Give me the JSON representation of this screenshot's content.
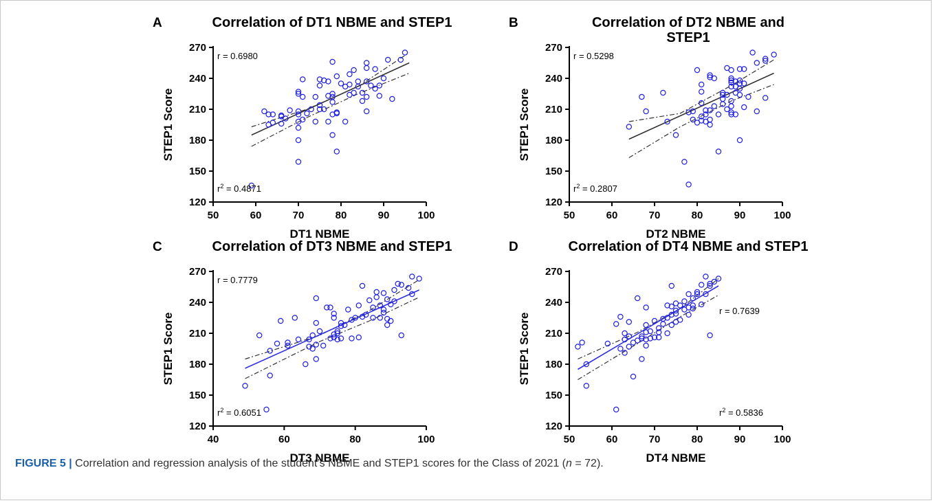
{
  "caption": {
    "lead": "FIGURE 5 |",
    "text_before_n": " Correlation and regression analysis of the student’s NBME and STEP1 scores for the Class of 2021 (",
    "n_symbol": "n",
    "text_after_n": " = 72)."
  },
  "colors": {
    "points": "#2020e0",
    "fit_black": "#333333",
    "fit_blue": "#3030e0",
    "axis": "#000000"
  },
  "chart_data": [
    {
      "panel": "A",
      "type": "scatter",
      "title": [
        "Correlation of DT1 NBME and STEP1"
      ],
      "xlabel": "DT1 NBME",
      "ylabel": "STEP1 Score",
      "xlim": [
        50,
        100
      ],
      "ylim": [
        120,
        270
      ],
      "xticks": [
        50,
        60,
        70,
        80,
        90,
        100
      ],
      "yticks": [
        120,
        150,
        180,
        210,
        240,
        270
      ],
      "r_text": "r = 0.6980",
      "r2_prefix": "r",
      "r2_value": " = 0.4871",
      "r_position": "top-left",
      "r2_position": "bottom-left",
      "fit_color": "black",
      "fit": {
        "x0": 59,
        "y0": 185,
        "x1": 96,
        "y1": 255
      },
      "band_upper": [
        [
          59,
          193
        ],
        [
          72,
          210
        ],
        [
          84,
          232
        ],
        [
          96,
          265
        ]
      ],
      "band_lower": [
        [
          59,
          174
        ],
        [
          72,
          202
        ],
        [
          84,
          225
        ],
        [
          96,
          245
        ]
      ],
      "points": [
        [
          59,
          136
        ],
        [
          62,
          208
        ],
        [
          63,
          195
        ],
        [
          63,
          205
        ],
        [
          64,
          197
        ],
        [
          64,
          205
        ],
        [
          66,
          196
        ],
        [
          66,
          203
        ],
        [
          66,
          204
        ],
        [
          67,
          201
        ],
        [
          68,
          209
        ],
        [
          70,
          159
        ],
        [
          70,
          180
        ],
        [
          70,
          192
        ],
        [
          70,
          198
        ],
        [
          70,
          205
        ],
        [
          70,
          208
        ],
        [
          70,
          225
        ],
        [
          70,
          227
        ],
        [
          71,
          200
        ],
        [
          71,
          222
        ],
        [
          71,
          239
        ],
        [
          72,
          206
        ],
        [
          73,
          210
        ],
        [
          74,
          198
        ],
        [
          74,
          222
        ],
        [
          75,
          210
        ],
        [
          75,
          214
        ],
        [
          75,
          233
        ],
        [
          75,
          239
        ],
        [
          76,
          210
        ],
        [
          76,
          238
        ],
        [
          77,
          198
        ],
        [
          77,
          223
        ],
        [
          77,
          237
        ],
        [
          78,
          185
        ],
        [
          78,
          205
        ],
        [
          78,
          217
        ],
        [
          78,
          222
        ],
        [
          78,
          225
        ],
        [
          78,
          256
        ],
        [
          79,
          169
        ],
        [
          79,
          206
        ],
        [
          79,
          207
        ],
        [
          79,
          242
        ],
        [
          80,
          235
        ],
        [
          81,
          198
        ],
        [
          81,
          232
        ],
        [
          82,
          224
        ],
        [
          82,
          234
        ],
        [
          82,
          244
        ],
        [
          83,
          226
        ],
        [
          83,
          248
        ],
        [
          84,
          232
        ],
        [
          84,
          237
        ],
        [
          85,
          218
        ],
        [
          85,
          226
        ],
        [
          86,
          208
        ],
        [
          86,
          222
        ],
        [
          86,
          237
        ],
        [
          86,
          250
        ],
        [
          86,
          255
        ],
        [
          87,
          233
        ],
        [
          88,
          230
        ],
        [
          88,
          249
        ],
        [
          89,
          223
        ],
        [
          89,
          233
        ],
        [
          90,
          240
        ],
        [
          91,
          258
        ],
        [
          92,
          220
        ],
        [
          94,
          258
        ],
        [
          95,
          265
        ]
      ]
    },
    {
      "panel": "B",
      "type": "scatter",
      "title": [
        "Correlation of DT2 NBME and",
        "STEP1"
      ],
      "xlabel": "DT2 NBME",
      "ylabel": "STEP1 Score",
      "xlim": [
        50,
        100
      ],
      "ylim": [
        120,
        270
      ],
      "xticks": [
        50,
        60,
        70,
        80,
        90,
        100
      ],
      "yticks": [
        120,
        150,
        180,
        210,
        240,
        270
      ],
      "r_text": "r = 0.5298",
      "r2_prefix": "r",
      "r2_value": " = 0.2807",
      "r_position": "top-left",
      "r2_position": "bottom-left",
      "fit_color": "black",
      "fit": {
        "x0": 64,
        "y0": 181,
        "x1": 98,
        "y1": 245
      },
      "band_upper": [
        [
          64,
          198
        ],
        [
          76,
          206
        ],
        [
          88,
          233
        ],
        [
          98,
          258
        ]
      ],
      "band_lower": [
        [
          64,
          163
        ],
        [
          76,
          193
        ],
        [
          88,
          218
        ],
        [
          98,
          234
        ]
      ],
      "points": [
        [
          64,
          193
        ],
        [
          67,
          222
        ],
        [
          68,
          208
        ],
        [
          72,
          226
        ],
        [
          73,
          198
        ],
        [
          75,
          185
        ],
        [
          77,
          159
        ],
        [
          78,
          137
        ],
        [
          78,
          207
        ],
        [
          79,
          208
        ],
        [
          79,
          200
        ],
        [
          80,
          197
        ],
        [
          80,
          248
        ],
        [
          81,
          199
        ],
        [
          81,
          203
        ],
        [
          81,
          216
        ],
        [
          81,
          227
        ],
        [
          81,
          234
        ],
        [
          82,
          198
        ],
        [
          82,
          205
        ],
        [
          82,
          209
        ],
        [
          83,
          195
        ],
        [
          83,
          200
        ],
        [
          83,
          209
        ],
        [
          83,
          241
        ],
        [
          83,
          243
        ],
        [
          84,
          213
        ],
        [
          84,
          240
        ],
        [
          85,
          169
        ],
        [
          85,
          205
        ],
        [
          86,
          215
        ],
        [
          86,
          220
        ],
        [
          86,
          224
        ],
        [
          86,
          226
        ],
        [
          87,
          210
        ],
        [
          87,
          224
        ],
        [
          87,
          250
        ],
        [
          88,
          205
        ],
        [
          88,
          207
        ],
        [
          88,
          213
        ],
        [
          88,
          218
        ],
        [
          88,
          232
        ],
        [
          88,
          236
        ],
        [
          88,
          238
        ],
        [
          88,
          240
        ],
        [
          88,
          248
        ],
        [
          89,
          205
        ],
        [
          89,
          226
        ],
        [
          89,
          232
        ],
        [
          89,
          237
        ],
        [
          90,
          180
        ],
        [
          90,
          224
        ],
        [
          90,
          230
        ],
        [
          90,
          235
        ],
        [
          90,
          238
        ],
        [
          90,
          249
        ],
        [
          91,
          212
        ],
        [
          91,
          235
        ],
        [
          91,
          249
        ],
        [
          92,
          222
        ],
        [
          93,
          265
        ],
        [
          94,
          208
        ],
        [
          94,
          255
        ],
        [
          96,
          221
        ],
        [
          96,
          257
        ],
        [
          96,
          259
        ],
        [
          98,
          263
        ]
      ]
    },
    {
      "panel": "C",
      "type": "scatter",
      "title": [
        "Correlation of DT3 NBME and STEP1"
      ],
      "xlabel": "DT3 NBME",
      "ylabel": "STEP1 Score",
      "xlim": [
        40,
        100
      ],
      "ylim": [
        120,
        270
      ],
      "xticks": [
        40,
        60,
        80,
        100
      ],
      "yticks": [
        120,
        150,
        180,
        210,
        240,
        270
      ],
      "r_text": "r = 0.7779",
      "r2_prefix": "r",
      "r2_value": " = 0.6051",
      "r_position": "top-left",
      "r2_position": "bottom-left",
      "fit_color": "blue",
      "fit": {
        "x0": 49,
        "y0": 176,
        "x1": 98,
        "y1": 252
      },
      "band_upper": [
        [
          49,
          185
        ],
        [
          70,
          208
        ],
        [
          84,
          232
        ],
        [
          98,
          262
        ]
      ],
      "band_lower": [
        [
          49,
          166
        ],
        [
          70,
          202
        ],
        [
          84,
          222
        ],
        [
          98,
          245
        ]
      ],
      "points": [
        [
          49,
          159
        ],
        [
          53,
          208
        ],
        [
          55,
          136
        ],
        [
          56,
          169
        ],
        [
          56,
          193
        ],
        [
          58,
          200
        ],
        [
          59,
          222
        ],
        [
          61,
          198
        ],
        [
          61,
          201
        ],
        [
          63,
          225
        ],
        [
          64,
          204
        ],
        [
          66,
          180
        ],
        [
          67,
          197
        ],
        [
          67,
          204
        ],
        [
          68,
          195
        ],
        [
          68,
          208
        ],
        [
          69,
          185
        ],
        [
          69,
          199
        ],
        [
          69,
          220
        ],
        [
          69,
          244
        ],
        [
          70,
          212
        ],
        [
          71,
          198
        ],
        [
          72,
          235
        ],
        [
          73,
          235
        ],
        [
          73,
          205
        ],
        [
          74,
          206
        ],
        [
          74,
          209
        ],
        [
          74,
          225
        ],
        [
          74,
          229
        ],
        [
          75,
          204
        ],
        [
          75,
          210
        ],
        [
          75,
          212
        ],
        [
          76,
          205
        ],
        [
          76,
          217
        ],
        [
          76,
          220
        ],
        [
          77,
          218
        ],
        [
          78,
          233
        ],
        [
          79,
          205
        ],
        [
          79,
          223
        ],
        [
          80,
          225
        ],
        [
          81,
          206
        ],
        [
          81,
          237
        ],
        [
          82,
          226
        ],
        [
          82,
          256
        ],
        [
          83,
          228
        ],
        [
          84,
          242
        ],
        [
          85,
          225
        ],
        [
          85,
          235
        ],
        [
          86,
          245
        ],
        [
          86,
          250
        ],
        [
          87,
          225
        ],
        [
          87,
          237
        ],
        [
          88,
          230
        ],
        [
          88,
          233
        ],
        [
          88,
          249
        ],
        [
          89,
          218
        ],
        [
          89,
          224
        ],
        [
          89,
          243
        ],
        [
          90,
          222
        ],
        [
          90,
          238
        ],
        [
          91,
          241
        ],
        [
          91,
          252
        ],
        [
          92,
          258
        ],
        [
          93,
          208
        ],
        [
          93,
          257
        ],
        [
          95,
          254
        ],
        [
          96,
          248
        ],
        [
          96,
          265
        ],
        [
          98,
          263
        ]
      ]
    },
    {
      "panel": "D",
      "type": "scatter",
      "title": [
        "Correlation of DT4 NBME and STEP1"
      ],
      "xlabel": "DT4 NBME",
      "ylabel": "STEP1 Score",
      "xlim": [
        50,
        100
      ],
      "ylim": [
        120,
        270
      ],
      "xticks": [
        50,
        60,
        70,
        80,
        90,
        100
      ],
      "yticks": [
        120,
        150,
        180,
        210,
        240,
        270
      ],
      "r_text": "r = 0.7639",
      "r2_prefix": "r",
      "r2_value": " = 0.5836",
      "r_position": "top-right",
      "r2_position": "bottom-right",
      "fit_color": "blue",
      "fit": {
        "x0": 52,
        "y0": 175,
        "x1": 85,
        "y1": 256
      },
      "band_upper": [
        [
          52,
          185
        ],
        [
          66,
          211
        ],
        [
          76,
          234
        ],
        [
          85,
          263
        ]
      ],
      "band_lower": [
        [
          52,
          165
        ],
        [
          66,
          200
        ],
        [
          76,
          226
        ],
        [
          85,
          247
        ]
      ],
      "points": [
        [
          52,
          197
        ],
        [
          53,
          201
        ],
        [
          54,
          159
        ],
        [
          54,
          180
        ],
        [
          59,
          200
        ],
        [
          61,
          136
        ],
        [
          61,
          219
        ],
        [
          62,
          195
        ],
        [
          62,
          226
        ],
        [
          63,
          191
        ],
        [
          63,
          204
        ],
        [
          63,
          210
        ],
        [
          64,
          197
        ],
        [
          64,
          207
        ],
        [
          64,
          221
        ],
        [
          65,
          168
        ],
        [
          65,
          201
        ],
        [
          66,
          203
        ],
        [
          66,
          244
        ],
        [
          67,
          185
        ],
        [
          67,
          205
        ],
        [
          67,
          207
        ],
        [
          68,
          198
        ],
        [
          68,
          204
        ],
        [
          68,
          211
        ],
        [
          68,
          218
        ],
        [
          68,
          235
        ],
        [
          69,
          205
        ],
        [
          69,
          212
        ],
        [
          70,
          206
        ],
        [
          70,
          222
        ],
        [
          71,
          206
        ],
        [
          71,
          211
        ],
        [
          71,
          215
        ],
        [
          72,
          219
        ],
        [
          72,
          224
        ],
        [
          73,
          210
        ],
        [
          73,
          225
        ],
        [
          73,
          237
        ],
        [
          74,
          218
        ],
        [
          74,
          228
        ],
        [
          74,
          236
        ],
        [
          74,
          256
        ],
        [
          75,
          221
        ],
        [
          75,
          229
        ],
        [
          75,
          232
        ],
        [
          75,
          239
        ],
        [
          76,
          223
        ],
        [
          76,
          237
        ],
        [
          77,
          233
        ],
        [
          77,
          241
        ],
        [
          78,
          228
        ],
        [
          78,
          235
        ],
        [
          78,
          248
        ],
        [
          79,
          234
        ],
        [
          79,
          237
        ],
        [
          79,
          244
        ],
        [
          80,
          248
        ],
        [
          80,
          250
        ],
        [
          81,
          238
        ],
        [
          81,
          257
        ],
        [
          82,
          248
        ],
        [
          82,
          265
        ],
        [
          83,
          208
        ],
        [
          83,
          256
        ],
        [
          83,
          258
        ],
        [
          84,
          260
        ],
        [
          85,
          263
        ]
      ]
    }
  ]
}
